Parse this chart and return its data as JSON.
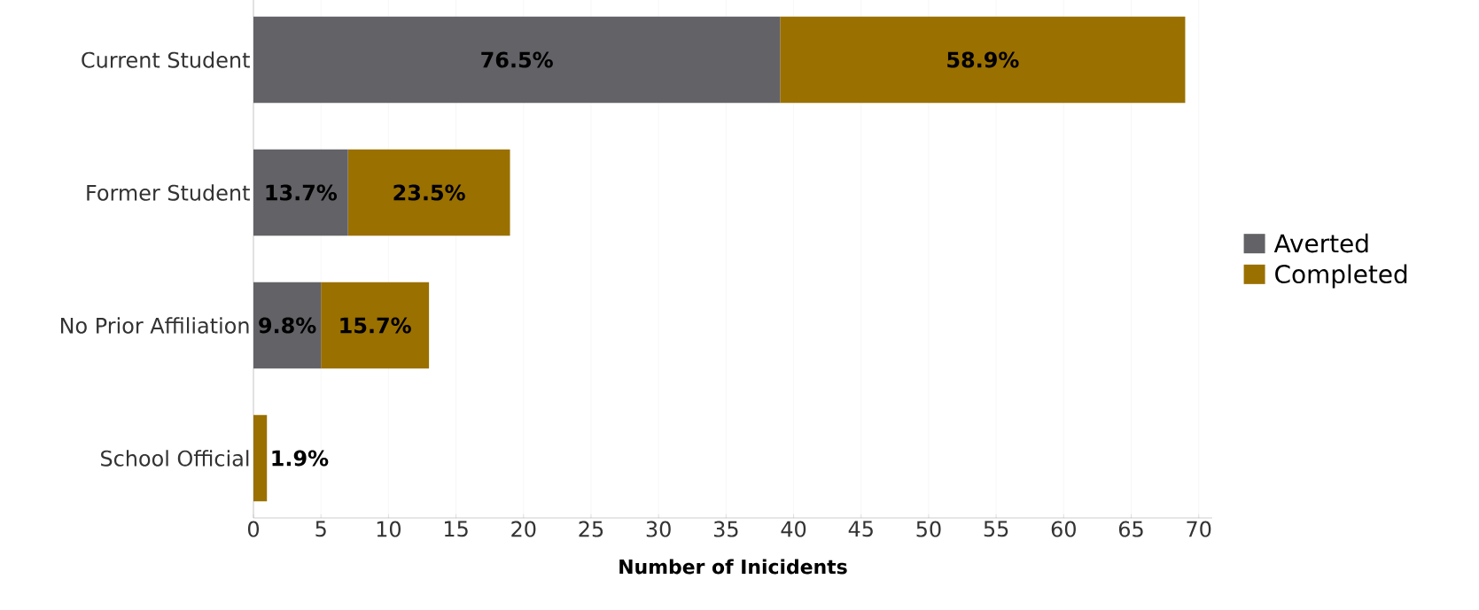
{
  "chart_data": {
    "type": "bar",
    "orientation": "horizontal",
    "stacked": true,
    "xlabel": "Number of Inicidents",
    "categories": [
      "Current Student",
      "Former Student",
      "No Prior Affiliation",
      "School Official"
    ],
    "series": [
      {
        "name": "Averted",
        "color": "#636267",
        "values": [
          39,
          7,
          5,
          0
        ]
      },
      {
        "name": "Completed",
        "color": "#9a7000",
        "values": [
          30,
          12,
          8,
          1
        ]
      }
    ],
    "annotations": [
      "76.5%",
      "58.9%",
      "13.7%",
      "23.5%",
      "9.8%",
      "15.7%",
      "1.9%"
    ],
    "xlim": [
      0,
      71
    ],
    "xticks": [
      0,
      5,
      10,
      15,
      20,
      25,
      30,
      35,
      40,
      45,
      50,
      55,
      60,
      65,
      70
    ],
    "grid": "x",
    "legend": "right"
  }
}
